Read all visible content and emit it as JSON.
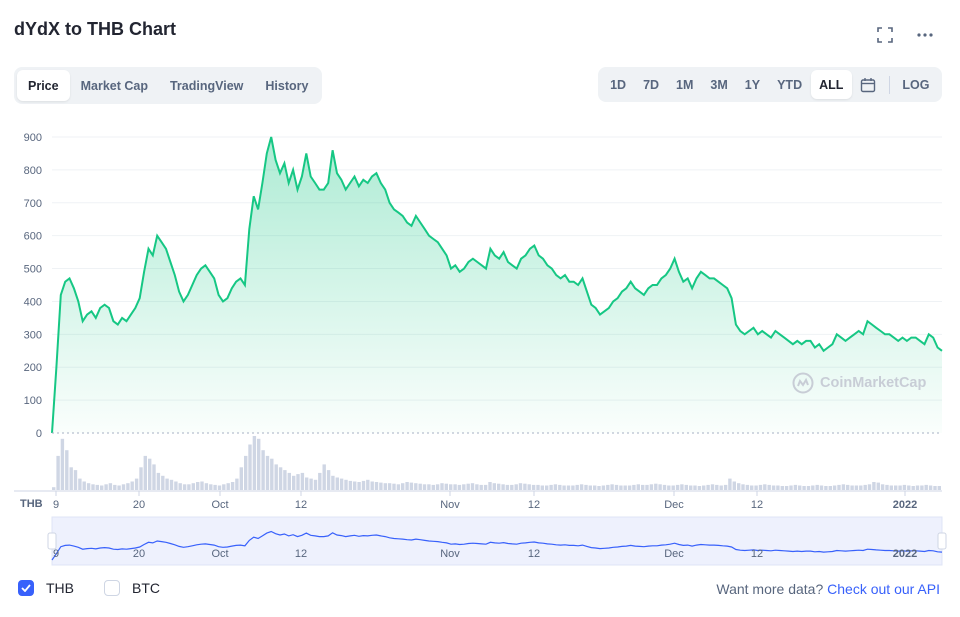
{
  "title": "dYdX to THB Chart",
  "icons": {
    "fullscreen": "fullscreen-icon",
    "more": "more-options-icon",
    "calendar": "calendar-icon"
  },
  "tabs_left": [
    "Price",
    "Market Cap",
    "TradingView",
    "History"
  ],
  "tabs_left_active": "Price",
  "tabs_right": [
    "1D",
    "7D",
    "1M",
    "3M",
    "1Y",
    "YTD",
    "ALL"
  ],
  "tabs_right_active": "ALL",
  "log_label": "LOG",
  "currency_label": "THB",
  "watermark": "CoinMarketCap",
  "legend": [
    {
      "label": "THB",
      "checked": true
    },
    {
      "label": "BTC",
      "checked": false
    }
  ],
  "footer": {
    "prefix": "Want more data?",
    "link": "Check out our API"
  },
  "colors": {
    "line": "#16c784",
    "accent": "#3861fb",
    "nav_line": "#3861fb",
    "volume": "#cfd6e4"
  },
  "chart_data": {
    "type": "area",
    "ylim": [
      0,
      900
    ],
    "yticks": [
      0,
      100,
      200,
      300,
      400,
      500,
      600,
      700,
      800,
      900
    ],
    "xtick_labels": [
      "9",
      "20",
      "Oct",
      "12",
      "Nov",
      "12",
      "Dec",
      "12",
      "2022"
    ],
    "series": [
      {
        "values": [
          0,
          200,
          420,
          460,
          470,
          440,
          400,
          340,
          360,
          370,
          350,
          380,
          390,
          380,
          340,
          330,
          350,
          340,
          360,
          380,
          410,
          490,
          560,
          540,
          600,
          580,
          560,
          520,
          480,
          430,
          400,
          420,
          450,
          480,
          500,
          510,
          490,
          470,
          420,
          400,
          410,
          440,
          460,
          470,
          450,
          620,
          720,
          680,
          760,
          850,
          900,
          830,
          790,
          820,
          760,
          800,
          740,
          780,
          850,
          780,
          760,
          740,
          740,
          760,
          860,
          790,
          770,
          740,
          760,
          780,
          750,
          770,
          760,
          780,
          790,
          760,
          740,
          700,
          680,
          670,
          660,
          640,
          630,
          660,
          640,
          620,
          600,
          590,
          580,
          560,
          540,
          500,
          510,
          490,
          500,
          520,
          530,
          520,
          510,
          500,
          560,
          540,
          530,
          550,
          520,
          510,
          500,
          530,
          540,
          560,
          570,
          540,
          530,
          510,
          500,
          480,
          470,
          480,
          460,
          460,
          450,
          470,
          430,
          390,
          380,
          360,
          370,
          380,
          400,
          410,
          430,
          440,
          460,
          440,
          430,
          420,
          440,
          450,
          450,
          470,
          480,
          500,
          530,
          490,
          460,
          470,
          440,
          470,
          490,
          480,
          470,
          470,
          460,
          450,
          440,
          410,
          330,
          310,
          300,
          310,
          320,
          300,
          310,
          300,
          290,
          310,
          300,
          290,
          280,
          270,
          280,
          270,
          280,
          280,
          260,
          270,
          250,
          260,
          270,
          300,
          290,
          280,
          290,
          300,
          310,
          300,
          340,
          330,
          320,
          310,
          300,
          300,
          290,
          280,
          290,
          280,
          290,
          290,
          280,
          270,
          300,
          290,
          260,
          250
        ],
        "volume": [
          5,
          60,
          90,
          70,
          40,
          35,
          20,
          15,
          12,
          10,
          9,
          8,
          10,
          12,
          9,
          8,
          10,
          12,
          15,
          20,
          40,
          60,
          55,
          45,
          30,
          25,
          20,
          18,
          15,
          12,
          10,
          10,
          12,
          14,
          15,
          12,
          10,
          9,
          8,
          10,
          12,
          14,
          20,
          40,
          60,
          80,
          95,
          90,
          70,
          60,
          55,
          45,
          40,
          35,
          30,
          25,
          28,
          30,
          22,
          20,
          18,
          30,
          45,
          35,
          25,
          22,
          20,
          18,
          16,
          15,
          14,
          16,
          18,
          15,
          14,
          13,
          12,
          12,
          11,
          10,
          12,
          14,
          13,
          12,
          11,
          10,
          10,
          9,
          10,
          12,
          11,
          10,
          10,
          9,
          10,
          11,
          12,
          10,
          9,
          9,
          14,
          12,
          11,
          10,
          9,
          9,
          10,
          12,
          11,
          10,
          9,
          9,
          8,
          8,
          9,
          10,
          9,
          8,
          8,
          8,
          9,
          10,
          9,
          8,
          8,
          7,
          8,
          9,
          10,
          9,
          8,
          8,
          8,
          9,
          10,
          9,
          9,
          10,
          11,
          10,
          9,
          8,
          8,
          9,
          10,
          9,
          8,
          8,
          7,
          8,
          9,
          10,
          9,
          8,
          9,
          20,
          15,
          12,
          10,
          9,
          8,
          8,
          9,
          10,
          9,
          8,
          8,
          7,
          7,
          8,
          9,
          8,
          7,
          7,
          8,
          9,
          8,
          7,
          7,
          8,
          9,
          10,
          9,
          8,
          8,
          8,
          9,
          10,
          14,
          13,
          10,
          9,
          8,
          8,
          8,
          9,
          8,
          7,
          8,
          8,
          9,
          8,
          7,
          7
        ]
      }
    ]
  }
}
